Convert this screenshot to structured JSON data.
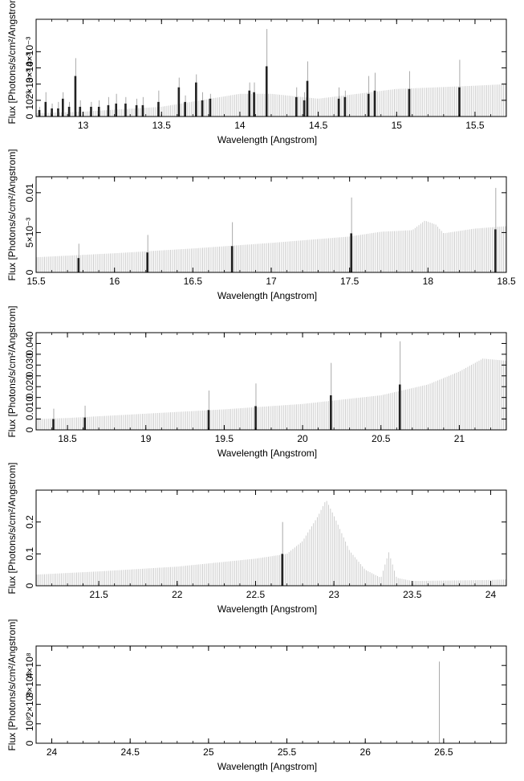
{
  "chart_data": [
    {
      "type": "bar",
      "xlabel": "Wavelength [Angstrom]",
      "ylabel": "Flux [Photons/s/cm²/Angstrom]",
      "xlim": [
        12.7,
        15.7
      ],
      "ylim": [
        0,
        0.006
      ],
      "x_ticks": [
        13,
        13.5,
        14,
        14.5,
        15,
        15.5
      ],
      "x_tick_labels": [
        "13",
        "13.5",
        "14",
        "14.5",
        "15",
        "15.5"
      ],
      "y_ticks": [
        0,
        0.001,
        0.002,
        0.003,
        0.004
      ],
      "y_tick_labels": [
        "0",
        "10⁻³",
        "2×10⁻³",
        "3×10⁻³",
        "4×10⁻³"
      ],
      "continuum": {
        "x": [
          12.7,
          13.0,
          13.5,
          14.0,
          14.2,
          14.5,
          15.0,
          15.5,
          15.7
        ],
        "y": [
          0.0002,
          0.0003,
          0.0006,
          0.0014,
          0.0014,
          0.0011,
          0.0017,
          0.0019,
          0.002
        ]
      },
      "lines": [
        {
          "x": 12.72,
          "y": 0.0004,
          "err": 0.0002
        },
        {
          "x": 12.76,
          "y": 0.0009,
          "err": 0.0006
        },
        {
          "x": 12.8,
          "y": 0.0005,
          "err": 0.0003
        },
        {
          "x": 12.84,
          "y": 0.0005,
          "err": 0.0004
        },
        {
          "x": 12.87,
          "y": 0.0011,
          "err": 0.0004
        },
        {
          "x": 12.91,
          "y": 0.0006,
          "err": 0.0003
        },
        {
          "x": 12.95,
          "y": 0.0025,
          "err": 0.0011
        },
        {
          "x": 12.98,
          "y": 0.0006,
          "err": 0.0004
        },
        {
          "x": 13.05,
          "y": 0.0006,
          "err": 0.0003
        },
        {
          "x": 13.1,
          "y": 0.0006,
          "err": 0.0004
        },
        {
          "x": 13.16,
          "y": 0.0007,
          "err": 0.0005
        },
        {
          "x": 13.21,
          "y": 0.0008,
          "err": 0.0006
        },
        {
          "x": 13.27,
          "y": 0.0008,
          "err": 0.0004
        },
        {
          "x": 13.34,
          "y": 0.0007,
          "err": 0.0004
        },
        {
          "x": 13.38,
          "y": 0.0007,
          "err": 0.0005
        },
        {
          "x": 13.48,
          "y": 0.0009,
          "err": 0.0007
        },
        {
          "x": 13.61,
          "y": 0.0018,
          "err": 0.0006
        },
        {
          "x": 13.65,
          "y": 0.0009,
          "err": 0.0004
        },
        {
          "x": 13.72,
          "y": 0.0021,
          "err": 0.0005
        },
        {
          "x": 13.76,
          "y": 0.001,
          "err": 0.0005
        },
        {
          "x": 13.81,
          "y": 0.0011,
          "err": 0.0003
        },
        {
          "x": 14.06,
          "y": 0.0016,
          "err": 0.0005
        },
        {
          "x": 14.09,
          "y": 0.0015,
          "err": 0.0006
        },
        {
          "x": 14.17,
          "y": 0.0031,
          "err": 0.0023
        },
        {
          "x": 14.36,
          "y": 0.0012,
          "err": 0.0006
        },
        {
          "x": 14.41,
          "y": 0.001,
          "err": 0.0005
        },
        {
          "x": 14.43,
          "y": 0.0022,
          "err": 0.0012
        },
        {
          "x": 14.63,
          "y": 0.0011,
          "err": 0.0007
        },
        {
          "x": 14.67,
          "y": 0.0012,
          "err": 0.0004
        },
        {
          "x": 14.82,
          "y": 0.0014,
          "err": 0.0011
        },
        {
          "x": 14.86,
          "y": 0.0016,
          "err": 0.0011
        },
        {
          "x": 15.08,
          "y": 0.0017,
          "err": 0.0011
        },
        {
          "x": 15.4,
          "y": 0.0018,
          "err": 0.0017
        }
      ]
    },
    {
      "type": "bar",
      "xlabel": "Wavelength [Angstrom]",
      "ylabel": "Flux [Photons/s/cm²/Angstrom]",
      "xlim": [
        15.5,
        18.5
      ],
      "ylim": [
        0,
        0.012
      ],
      "x_ticks": [
        15.5,
        16,
        16.5,
        17,
        17.5,
        18,
        18.5
      ],
      "x_tick_labels": [
        "15.5",
        "16",
        "16.5",
        "17",
        "17.5",
        "18",
        "18.5"
      ],
      "y_ticks": [
        0,
        0.005,
        0.01
      ],
      "y_tick_labels": [
        "0",
        "5×10⁻³",
        "0.01"
      ],
      "continuum": {
        "x": [
          15.5,
          16.0,
          16.5,
          17.0,
          17.5,
          17.7,
          17.9,
          17.98,
          18.05,
          18.1,
          18.3,
          18.5
        ],
        "y": [
          0.0019,
          0.0024,
          0.003,
          0.0037,
          0.0045,
          0.0051,
          0.0053,
          0.0065,
          0.006,
          0.0049,
          0.0055,
          0.0058
        ]
      },
      "lines": [
        {
          "x": 15.77,
          "y": 0.0018,
          "err": 0.0018
        },
        {
          "x": 16.21,
          "y": 0.0025,
          "err": 0.0022
        },
        {
          "x": 16.75,
          "y": 0.0033,
          "err": 0.003
        },
        {
          "x": 17.51,
          "y": 0.0049,
          "err": 0.0045
        },
        {
          "x": 18.43,
          "y": 0.0054,
          "err": 0.0052
        }
      ]
    },
    {
      "type": "bar",
      "xlabel": "Wavelength [Angstrom]",
      "ylabel": "Flux [Photons/s/cm²/Angstrom]",
      "xlim": [
        18.3,
        21.3
      ],
      "ylim": [
        0,
        0.045
      ],
      "x_ticks": [
        18.5,
        19,
        19.5,
        20,
        20.5,
        21
      ],
      "x_tick_labels": [
        "18.5",
        "19",
        "19.5",
        "20",
        "20.5",
        "21"
      ],
      "y_ticks": [
        0,
        0.005,
        0.01,
        0.015,
        0.02,
        0.025,
        0.03,
        0.035,
        0.04
      ],
      "y_tick_labels": [
        "0",
        "",
        "0.010",
        "",
        "0.020",
        "",
        "0.030",
        "",
        "0.040"
      ],
      "continuum": {
        "x": [
          18.3,
          18.5,
          19.0,
          19.5,
          20.0,
          20.5,
          20.8,
          21.0,
          21.15,
          21.3
        ],
        "y": [
          0.005,
          0.0055,
          0.0075,
          0.0095,
          0.012,
          0.016,
          0.021,
          0.027,
          0.033,
          0.032
        ]
      },
      "lines": [
        {
          "x": 18.41,
          "y": 0.005,
          "err": 0.0048
        },
        {
          "x": 18.61,
          "y": 0.0057,
          "err": 0.0055
        },
        {
          "x": 19.4,
          "y": 0.0092,
          "err": 0.009
        },
        {
          "x": 19.7,
          "y": 0.011,
          "err": 0.0105
        },
        {
          "x": 20.18,
          "y": 0.016,
          "err": 0.015
        },
        {
          "x": 20.62,
          "y": 0.021,
          "err": 0.02
        }
      ]
    },
    {
      "type": "bar",
      "xlabel": "Wavelength [Angstrom]",
      "ylabel": "Flux [Photons/s/cm²/Angstrom]",
      "xlim": [
        21.1,
        24.1
      ],
      "ylim": [
        0,
        0.3
      ],
      "x_ticks": [
        21.5,
        22,
        22.5,
        23,
        23.5,
        24
      ],
      "x_tick_labels": [
        "21.5",
        "22",
        "22.5",
        "23",
        "23.5",
        "24"
      ],
      "y_ticks": [
        0,
        0.1,
        0.2
      ],
      "y_tick_labels": [
        "0",
        "0.1",
        "0.2"
      ],
      "continuum": {
        "x": [
          21.1,
          21.5,
          22.0,
          22.5,
          22.7,
          22.8,
          22.9,
          22.95,
          23.0,
          23.1,
          23.2,
          23.3,
          23.35,
          23.4,
          23.5,
          24.0,
          24.1
        ],
        "y": [
          0.035,
          0.045,
          0.06,
          0.085,
          0.1,
          0.14,
          0.22,
          0.27,
          0.22,
          0.11,
          0.05,
          0.025,
          0.105,
          0.025,
          0.015,
          0.018,
          0.02
        ]
      },
      "lines": [
        {
          "x": 22.67,
          "y": 0.1,
          "err": 0.1
        }
      ]
    },
    {
      "type": "bar",
      "xlabel": "Wavelength [Angstrom]",
      "ylabel": "Flux [Photons/s/cm²/Angstrom]",
      "xlim": [
        23.9,
        26.9
      ],
      "ylim": [
        0,
        500000000
      ],
      "x_ticks": [
        24,
        24.5,
        25,
        25.5,
        26,
        26.5
      ],
      "x_tick_labels": [
        "24",
        "24.5",
        "25",
        "25.5",
        "26",
        "26.5"
      ],
      "y_ticks": [
        0,
        100000000,
        200000000,
        300000000,
        400000000
      ],
      "y_tick_labels": [
        "0",
        "10⁸",
        "2×10⁸",
        "3×10⁸",
        "4×10⁸"
      ],
      "continuum": {
        "x": [
          23.9,
          26.9
        ],
        "y": [
          0,
          0
        ]
      },
      "lines": [
        {
          "x": 26.47,
          "y": 0,
          "err": 420000000
        }
      ]
    }
  ]
}
